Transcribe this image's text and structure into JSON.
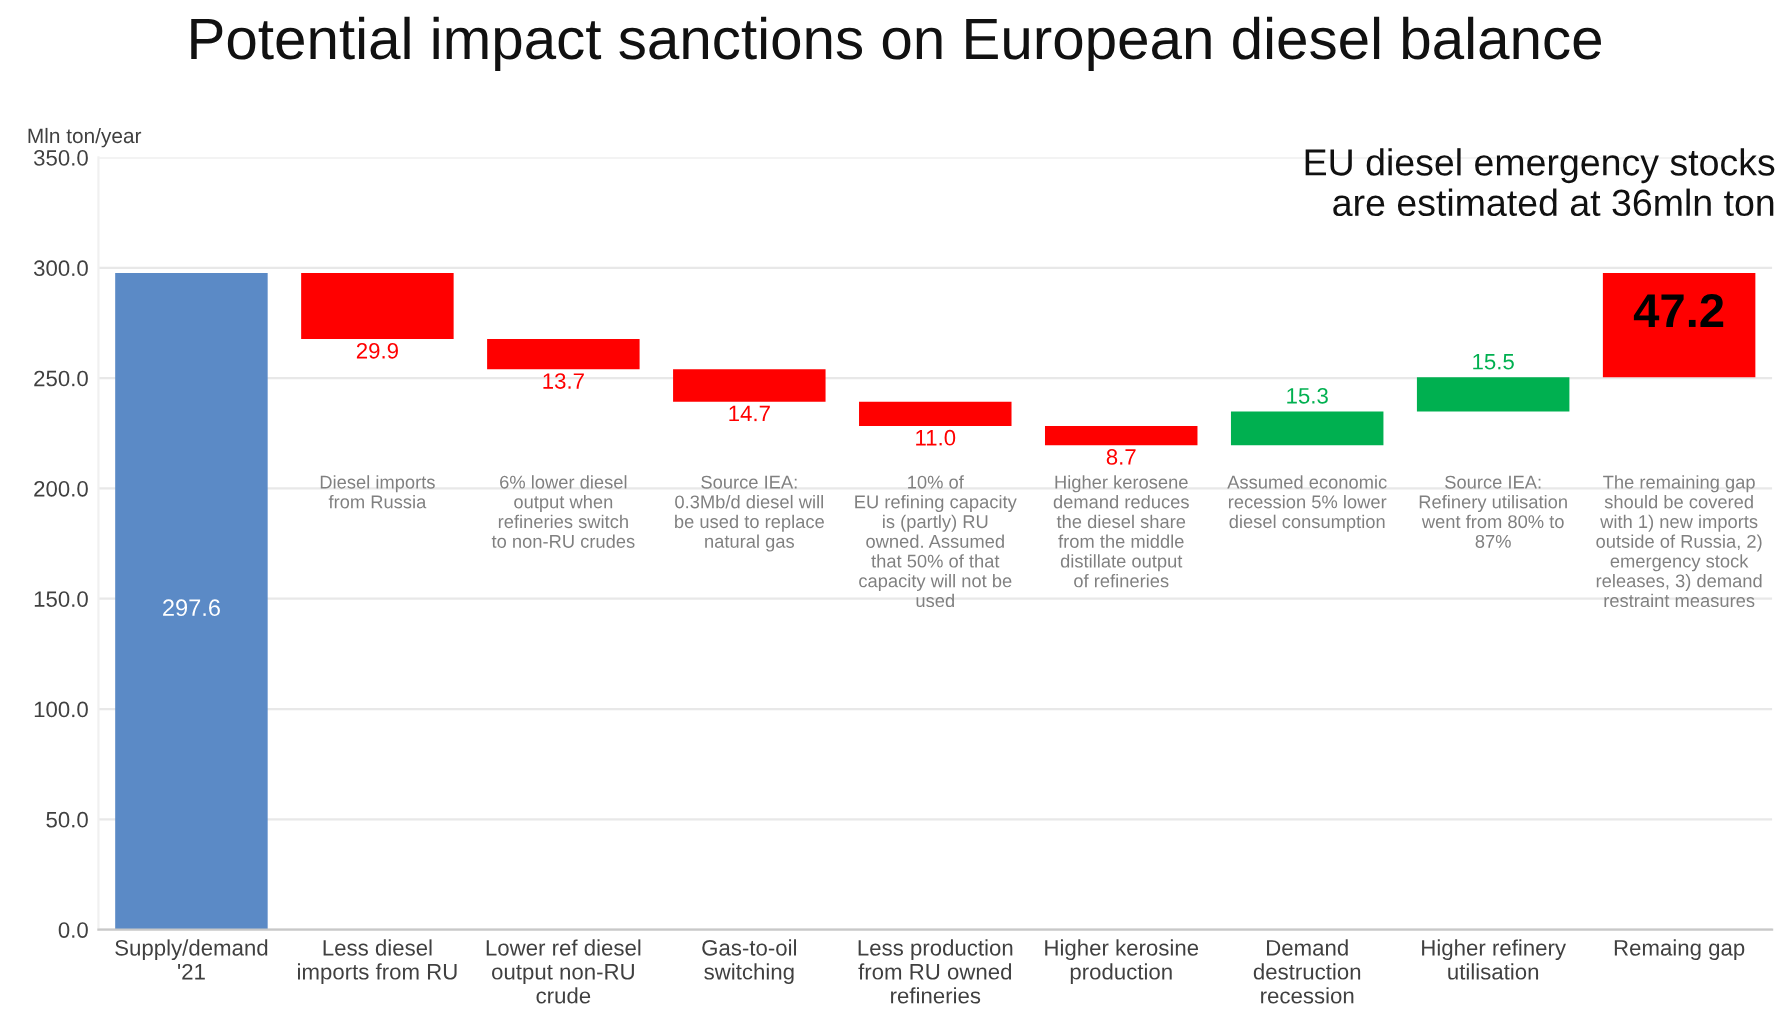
{
  "chart_data": {
    "type": "bar",
    "title": "Potential impact sanctions on European diesel balance",
    "ylabel": "Mln ton/year",
    "categories": [
      "Supply/demand\n'21",
      "Less diesel\nimports from RU",
      "Lower ref diesel\noutput non-RU\ncrude",
      "Gas-to-oil\nswitching",
      "Less production\nfrom RU owned\nrefineries",
      "Higher kerosine\nproduction",
      "Demand\ndestruction\nrecession",
      "Higher refinery\nutilisation",
      "Remaing gap"
    ],
    "values": [
      297.6,
      29.9,
      13.7,
      14.7,
      11.0,
      8.7,
      15.3,
      15.5,
      47.2
    ],
    "base": [
      0,
      267.7,
      254.0,
      239.3,
      228.3,
      219.6,
      219.6,
      234.9,
      250.4
    ],
    "colors": [
      "#5b8ac6",
      "#ff0000",
      "#ff0000",
      "#ff0000",
      "#ff0000",
      "#ff0000",
      "#00b050",
      "#00b050",
      "#ff0000"
    ],
    "value_labels": [
      "297.6",
      "29.9",
      "13.7",
      "14.7",
      "11.0",
      "8.7",
      "15.3",
      "15.5",
      "47.2"
    ],
    "ylim": [
      0,
      350
    ],
    "yticks": [
      {
        "value": 0,
        "label": "0.0"
      },
      {
        "value": 50,
        "label": "50.0"
      },
      {
        "value": 100,
        "label": "100.0"
      },
      {
        "value": 150,
        "label": "150.0"
      },
      {
        "value": 200,
        "label": "200.0"
      },
      {
        "value": 250,
        "label": "250.0"
      },
      {
        "value": 300,
        "label": "300.0"
      },
      {
        "value": 350,
        "label": "350.0"
      }
    ],
    "grid": "y",
    "annotations": [
      "EU diesel emergency stocks\nare estimated at 36mln ton",
      "Diesel imports\nfrom Russia",
      "6% lower diesel\noutput when\nrefineries switch\nto non-RU crudes",
      "Source IEA:\n0.3Mb/d diesel will\nbe used to replace\nnatural gas",
      "10% of\nEU refining capacity\nis (partly) RU\nowned. Assumed\nthat 50% of that\ncapacity will not be\nused",
      "Higher kerosene\ndemand reduces\nthe diesel share\nfrom the middle\ndistillate output\nof refineries",
      "Assumed economic\nrecession 5% lower\ndiesel consumption",
      "Source IEA:\nRefinery utilisation\nwent from 80% to\n87%",
      "The remaining gap\nshould be covered\nwith 1) new imports\noutside of Russia, 2)\nemergency stock\nreleases, 3) demand\nrestraint measures"
    ]
  }
}
